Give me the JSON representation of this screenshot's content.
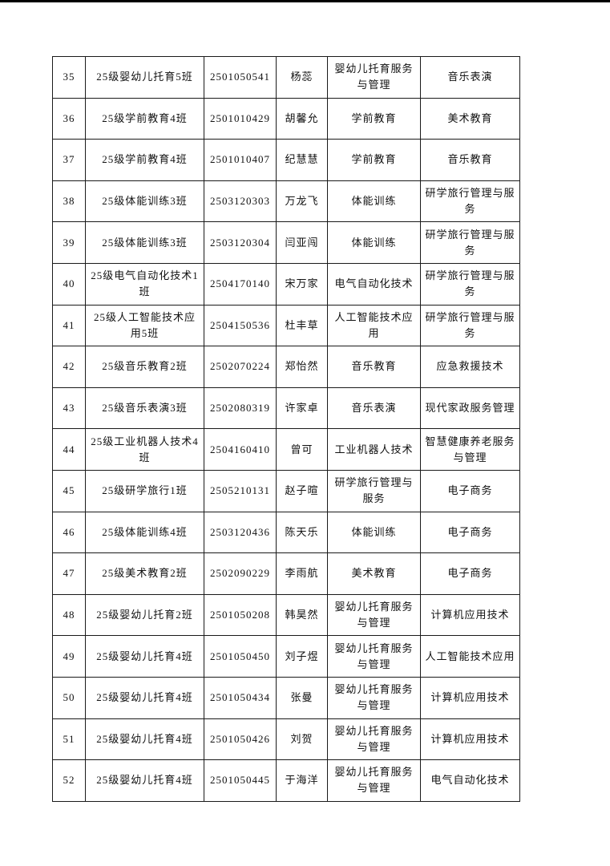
{
  "page": {
    "background_color": "#ffffff",
    "top_edge_bar_color": "#000000"
  },
  "table": {
    "border_color": "#1a1a1a",
    "text_color": "#111111",
    "column_keys": [
      "no",
      "class_name",
      "student_id",
      "student_name",
      "major",
      "target_major"
    ],
    "rows": [
      {
        "no": "35",
        "class_name": "25级婴幼儿托育5班",
        "student_id": "2501050541",
        "student_name": "杨蕊",
        "major": "婴幼儿托育服务与管理",
        "target_major": "音乐表演"
      },
      {
        "no": "36",
        "class_name": "25级学前教育4班",
        "student_id": "2501010429",
        "student_name": "胡馨允",
        "major": "学前教育",
        "target_major": "美术教育"
      },
      {
        "no": "37",
        "class_name": "25级学前教育4班",
        "student_id": "2501010407",
        "student_name": "纪慧慧",
        "major": "学前教育",
        "target_major": "音乐教育"
      },
      {
        "no": "38",
        "class_name": "25级体能训练3班",
        "student_id": "2503120303",
        "student_name": "万龙飞",
        "major": "体能训练",
        "target_major": "研学旅行管理与服务"
      },
      {
        "no": "39",
        "class_name": "25级体能训练3班",
        "student_id": "2503120304",
        "student_name": "闫亚闯",
        "major": "体能训练",
        "target_major": "研学旅行管理与服务"
      },
      {
        "no": "40",
        "class_name": "25级电气自动化技术1班",
        "student_id": "2504170140",
        "student_name": "宋万家",
        "major": "电气自动化技术",
        "target_major": "研学旅行管理与服务"
      },
      {
        "no": "41",
        "class_name": "25级人工智能技术应用5班",
        "student_id": "2504150536",
        "student_name": "杜丰草",
        "major": "人工智能技术应用",
        "target_major": "研学旅行管理与服务"
      },
      {
        "no": "42",
        "class_name": "25级音乐教育2班",
        "student_id": "2502070224",
        "student_name": "郑怡然",
        "major": "音乐教育",
        "target_major": "应急救援技术"
      },
      {
        "no": "43",
        "class_name": "25级音乐表演3班",
        "student_id": "2502080319",
        "student_name": "许家卓",
        "major": "音乐表演",
        "target_major": "现代家政服务管理"
      },
      {
        "no": "44",
        "class_name": "25级工业机器人技术4班",
        "student_id": "2504160410",
        "student_name": "曾可",
        "major": "工业机器人技术",
        "target_major": "智慧健康养老服务与管理"
      },
      {
        "no": "45",
        "class_name": "25级研学旅行1班",
        "student_id": "2505210131",
        "student_name": "赵子暄",
        "major": "研学旅行管理与服务",
        "target_major": "电子商务"
      },
      {
        "no": "46",
        "class_name": "25级体能训练4班",
        "student_id": "2503120436",
        "student_name": "陈天乐",
        "major": "体能训练",
        "target_major": "电子商务"
      },
      {
        "no": "47",
        "class_name": "25级美术教育2班",
        "student_id": "2502090229",
        "student_name": "李雨航",
        "major": "美术教育",
        "target_major": "电子商务"
      },
      {
        "no": "48",
        "class_name": "25级婴幼儿托育2班",
        "student_id": "2501050208",
        "student_name": "韩昊然",
        "major": "婴幼儿托育服务与管理",
        "target_major": "计算机应用技术"
      },
      {
        "no": "49",
        "class_name": "25级婴幼儿托育4班",
        "student_id": "2501050450",
        "student_name": "刘子煜",
        "major": "婴幼儿托育服务与管理",
        "target_major": "人工智能技术应用"
      },
      {
        "no": "50",
        "class_name": "25级婴幼儿托育4班",
        "student_id": "2501050434",
        "student_name": "张曼",
        "major": "婴幼儿托育服务与管理",
        "target_major": "计算机应用技术"
      },
      {
        "no": "51",
        "class_name": "25级婴幼儿托育4班",
        "student_id": "2501050426",
        "student_name": "刘贺",
        "major": "婴幼儿托育服务与管理",
        "target_major": "计算机应用技术"
      },
      {
        "no": "52",
        "class_name": "25级婴幼儿托育4班",
        "student_id": "2501050445",
        "student_name": "于海洋",
        "major": "婴幼儿托育服务与管理",
        "target_major": "电气自动化技术"
      }
    ]
  }
}
